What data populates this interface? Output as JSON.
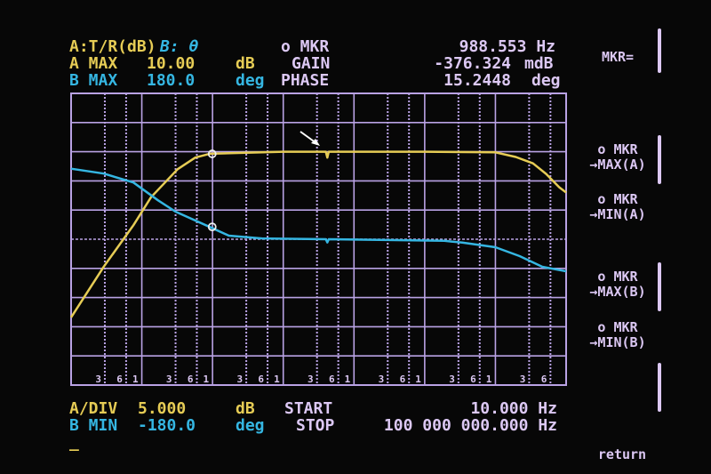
{
  "header": {
    "trace_mode_a": "A:T/R(dB)",
    "trace_mode_b": "B: θ",
    "marker_label": "o MKR",
    "marker_freq": "988.553 Hz",
    "a_max_label": "A MAX",
    "a_max_value": "10.00",
    "a_max_unit": "dB",
    "gain_label": "GAIN",
    "gain_value": "-376.324",
    "gain_unit": "mdB",
    "b_max_label": "B MAX",
    "b_max_value": "180.0",
    "b_max_unit": "deg",
    "phase_label": "PHASE",
    "phase_value": "15.2448",
    "phase_unit": "deg"
  },
  "footer": {
    "a_div_label": "A/DIV",
    "a_div_value": "5.000",
    "a_div_unit": "dB",
    "start_label": "START",
    "start_value": "10.000 Hz",
    "b_min_label": "B MIN",
    "b_min_value": "-180.0",
    "b_min_unit": "deg",
    "stop_label": "STOP",
    "stop_value": "100 000 000.000 Hz",
    "cursor": "_"
  },
  "softkeys": [
    {
      "label": "MKR="
    },
    {
      "label": "o MKR\n→MAX(A)"
    },
    {
      "label": "o MKR\n→MIN(A)"
    },
    {
      "label": "o MKR\n→MAX(B)"
    },
    {
      "label": "o MKR\n→MIN(B)"
    },
    {
      "label": "return"
    }
  ],
  "colors": {
    "trace_a": "#e6cc55",
    "trace_b": "#35b6e2",
    "grid": "#b9a2e4",
    "text": "#dcc8f4",
    "background": "#070707"
  },
  "chart_data": {
    "type": "line",
    "x_scale": "log",
    "xlim": [
      10,
      100000000
    ],
    "y_divisions": 10,
    "grid": true,
    "x_tick_labels": [
      "3",
      "6",
      "1"
    ],
    "marker": {
      "freq": 988.553,
      "gain_db": -0.376,
      "phase_deg": 15.2448
    },
    "series": [
      {
        "name": "A",
        "unit": "dB",
        "ylim": [
          -40,
          10
        ],
        "x": [
          10,
          29,
          76,
          135,
          320,
          570,
          910,
          10000,
          40000,
          42000,
          44000,
          1000000,
          10000000,
          19400000,
          34000000,
          52000000,
          80000000,
          100000000
        ],
        "values": [
          -28.4,
          -19.7,
          -12.6,
          -7.8,
          -3.0,
          -1.0,
          -0.35,
          0,
          0,
          -1.0,
          0,
          0,
          -0.1,
          -0.9,
          -2.0,
          -3.8,
          -6.1,
          -7.0
        ]
      },
      {
        "name": "B",
        "unit": "deg",
        "ylim": [
          -180,
          180
        ],
        "x": [
          10,
          29,
          76,
          170,
          300,
          910,
          1700,
          5000,
          40000,
          42000,
          44000,
          1900000,
          3400000,
          10000000,
          22000000,
          46000000,
          100000000
        ],
        "values": [
          87,
          81,
          70,
          48,
          34,
          15.2,
          4.4,
          1,
          0,
          -4,
          0,
          -2,
          -4.2,
          -9.9,
          -20.9,
          -34,
          -39.6
        ]
      }
    ]
  }
}
